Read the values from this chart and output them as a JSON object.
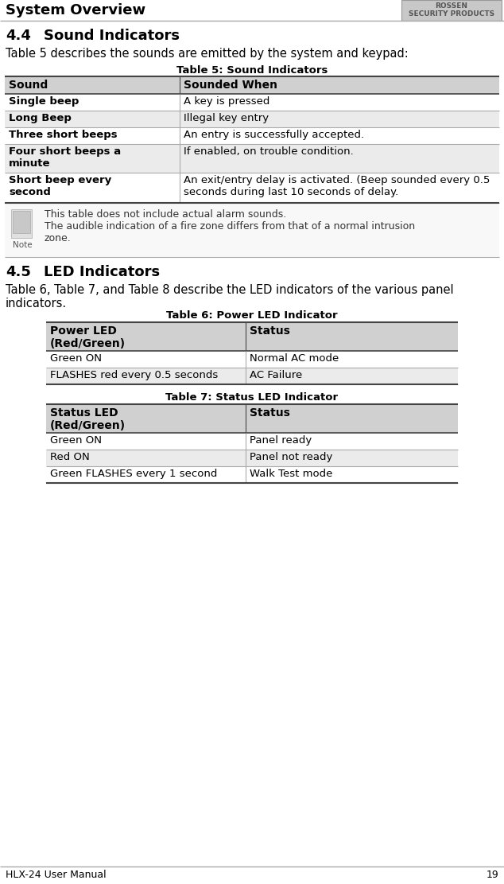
{
  "page_title": "System Overview",
  "logo_text": "SECURITY PRODUCTS",
  "page_number": "19",
  "manual_name": "HLX-24 User Manual",
  "section_44_title": "4.4",
  "section_44_title2": "Sound Indicators",
  "section_44_intro": "Table 5 describes the sounds are emitted by the system and keypad:",
  "table5_title": "Table 5: Sound Indicators",
  "table5_col1_header": "Sound",
  "table5_col2_header": "Sounded When",
  "table5_rows": [
    [
      "Single beep",
      "A key is pressed"
    ],
    [
      "Long Beep",
      "Illegal key entry"
    ],
    [
      "Three short beeps",
      "An entry is successfully accepted."
    ],
    [
      "Four short beeps a\nminute",
      "If enabled, on trouble condition."
    ],
    [
      "Short beep every\nsecond",
      "An exit/entry delay is activated. (Beep sounded every 0.5\nseconds during last 10 seconds of delay."
    ]
  ],
  "note_line1": "This table does not include actual alarm sounds.",
  "note_line2": "The audible indication of a fire zone differs from that of a normal intrusion",
  "note_line3": "zone.",
  "section_45_title": "4.5",
  "section_45_title2": "LED Indicators",
  "section_45_intro": "Table 6, Table 7, and Table 8 describe the LED indicators of the various panel\nindicators.",
  "table6_title": "Table 6: Power LED Indicator",
  "table6_col1_header": "Power LED\n(Red/Green)",
  "table6_col2_header": "Status",
  "table6_rows": [
    [
      "Green ON",
      "Normal AC mode"
    ],
    [
      "FLASHES red every 0.5 seconds",
      "AC Failure"
    ]
  ],
  "table7_title": "Table 7: Status LED Indicator",
  "table7_col1_header": "Status LED\n(Red/Green)",
  "table7_col2_header": "Status",
  "table7_rows": [
    [
      "Green ON",
      "Panel ready"
    ],
    [
      "Red ON",
      "Panel not ready"
    ],
    [
      "Green FLASHES every 1 second",
      "Walk Test mode"
    ]
  ],
  "bg_color": "#ffffff",
  "header_bg": "#d0d0d0",
  "alt_row_bg": "#ebebeb",
  "white_row_bg": "#ffffff",
  "dark_line": "#444444",
  "light_line": "#aaaaaa",
  "note_bg": "#f5f5f5",
  "logo_bg": "#c8c8c8",
  "logo_border": "#999999"
}
